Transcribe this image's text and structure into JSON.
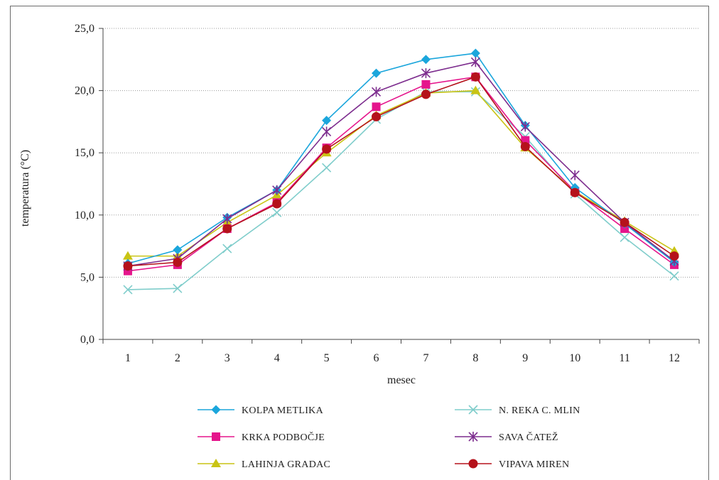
{
  "chart_data": {
    "type": "line",
    "title": "",
    "xlabel": "mesec",
    "ylabel": "temperatura (°C)",
    "ylim": [
      0,
      25
    ],
    "yticks": [
      "0,0",
      "5,0",
      "10,0",
      "15,0",
      "20,0",
      "25,0"
    ],
    "categories": [
      "1",
      "2",
      "3",
      "4",
      "5",
      "6",
      "7",
      "8",
      "9",
      "10",
      "11",
      "12"
    ],
    "grid": "horizontal dotted",
    "legend_placement": "bottom",
    "series": [
      {
        "name": "KOLPA METLIKA",
        "color": "#1BA6DC",
        "marker": "diamond",
        "values": [
          6.1,
          7.2,
          9.8,
          12.0,
          17.6,
          21.4,
          22.5,
          23.0,
          17.2,
          12.2,
          9.3,
          6.2
        ]
      },
      {
        "name": "KRKA PODBOČJE",
        "color": "#E5158C",
        "marker": "square",
        "values": [
          5.5,
          6.0,
          8.9,
          11.0,
          15.4,
          18.7,
          20.5,
          21.1,
          16.0,
          11.9,
          8.9,
          6.0
        ]
      },
      {
        "name": "LAHINJA GRADAC",
        "color": "#C9C414",
        "marker": "triangle",
        "values": [
          6.7,
          6.7,
          9.4,
          11.6,
          15.0,
          18.0,
          19.8,
          20.0,
          15.4,
          11.9,
          9.5,
          7.1
        ]
      },
      {
        "name": "N. REKA C. MLIN",
        "color": "#7FCDCB",
        "marker": "x",
        "values": [
          4.0,
          4.1,
          7.3,
          10.2,
          13.8,
          17.7,
          19.9,
          19.9,
          16.3,
          11.7,
          8.2,
          5.1
        ]
      },
      {
        "name": "SAVA ČATEŽ",
        "color": "#7D2D8E",
        "marker": "asterisk",
        "values": [
          5.9,
          6.5,
          9.7,
          12.0,
          16.7,
          19.9,
          21.4,
          22.3,
          17.1,
          13.2,
          9.4,
          6.3
        ]
      },
      {
        "name": "VIPAVA MIREN",
        "color": "#B5121B",
        "marker": "circle",
        "values": [
          5.9,
          6.2,
          8.9,
          10.9,
          15.3,
          17.9,
          19.7,
          21.1,
          15.5,
          11.8,
          9.4,
          6.7
        ]
      }
    ]
  }
}
